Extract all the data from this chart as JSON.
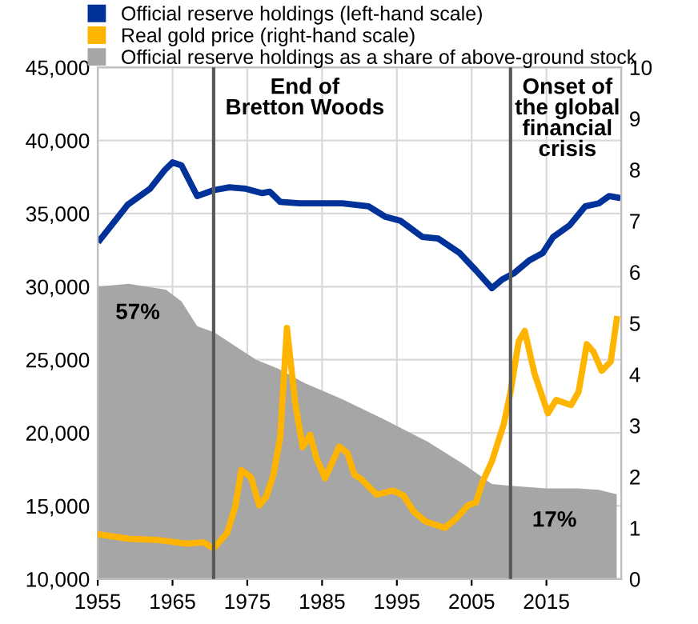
{
  "chart_data": {
    "type": "line",
    "legend": "top left",
    "grid": true,
    "xlim": [
      1955,
      2025
    ],
    "xticks": [
      1955,
      1965,
      1975,
      1985,
      1995,
      2005,
      2015
    ],
    "ylim": [
      10000,
      45000
    ],
    "yticks": [
      {
        "value": 10000,
        "label": "10,000"
      },
      {
        "value": 15000,
        "label": "15,000"
      },
      {
        "value": 20000,
        "label": "20,000"
      },
      {
        "value": 25000,
        "label": "25,000"
      },
      {
        "value": 30000,
        "label": "30,000"
      },
      {
        "value": 35000,
        "label": "35,000"
      },
      {
        "value": 40000,
        "label": "40,000"
      },
      {
        "value": 45000,
        "label": "45,000"
      }
    ],
    "y2lim": [
      0,
      10
    ],
    "y2ticks": [
      0,
      1,
      2,
      3,
      4,
      5,
      6,
      7,
      8,
      9,
      10
    ],
    "series": [
      {
        "name": "Official reserve holdings as a share of above-ground stock",
        "type": "area",
        "axis": "y",
        "color": "#a6a6a6",
        "x": [
          1955,
          1959.1,
          1964.1,
          1966.2,
          1968.3,
          1970.5,
          1976.2,
          1979.1,
          1982.7,
          1987.7,
          1993.4,
          1999.1,
          2004.1,
          2007.7,
          2009.9,
          2014.9,
          2019.1,
          2022,
          2024.4
        ],
        "values": [
          30000,
          30200,
          29800,
          29000,
          27300,
          26900,
          25000,
          24400,
          23400,
          22300,
          20900,
          19400,
          17800,
          16500,
          16400,
          16200,
          16200,
          16100,
          15800
        ]
      },
      {
        "name": "Official reserve holdings (left-hand scale)",
        "axis": "y",
        "color": "#003299",
        "x": [
          1955.3,
          1959,
          1962,
          1964,
          1965,
          1966.2,
          1968.3,
          1970.5,
          1972.6,
          1974.8,
          1977,
          1978,
          1979.4,
          1982,
          1987.7,
          1991.2,
          1993.4,
          1995.5,
          1998.4,
          2000.5,
          2003.4,
          2005.6,
          2007.7,
          2009.1,
          2010.6,
          2012.7,
          2014.5,
          2015.9,
          2018.1,
          2020.2,
          2022,
          2023.4,
          2024.5
        ],
        "values": [
          33200,
          35600,
          36700,
          38000,
          38500,
          38300,
          36200,
          36600,
          36800,
          36700,
          36400,
          36500,
          35800,
          35700,
          35700,
          35500,
          34800,
          34500,
          33400,
          33300,
          32300,
          31100,
          29900,
          30500,
          30900,
          31800,
          32300,
          33400,
          34200,
          35500,
          35700,
          36200,
          36100
        ]
      },
      {
        "name": "Real gold price (right-hand scale)",
        "type": "line",
        "axis": "y2",
        "color": "#ffb400",
        "x": [
          1955.3,
          1959.1,
          1963.3,
          1966.9,
          1969.1,
          1970.5,
          1972.3,
          1973.4,
          1974.2,
          1975.5,
          1976.6,
          1977.5,
          1978.5,
          1979.4,
          1980.3,
          1981.4,
          1982.4,
          1983.4,
          1984.2,
          1985.4,
          1987.3,
          1988.4,
          1989.3,
          1990.2,
          1992.3,
          1994.5,
          1995.9,
          1997.3,
          1998.8,
          2001.4,
          2003.0,
          2004.5,
          2005.6,
          2006.4,
          2007.7,
          2009.3,
          2010.2,
          2011.3,
          2012.1,
          2013.4,
          2015.2,
          2016.3,
          2018.3,
          2019.3,
          2020.4,
          2021.3,
          2022.4,
          2023.6,
          2024.4
        ],
        "values": [
          0.87,
          0.79,
          0.76,
          0.69,
          0.72,
          0.6,
          0.9,
          1.42,
          2.13,
          1.99,
          1.44,
          1.6,
          2.04,
          2.77,
          4.91,
          3.45,
          2.58,
          2.82,
          2.38,
          1.97,
          2.59,
          2.46,
          2.04,
          1.96,
          1.65,
          1.73,
          1.63,
          1.31,
          1.13,
          1.0,
          1.19,
          1.44,
          1.5,
          1.88,
          2.3,
          3.03,
          3.66,
          4.65,
          4.85,
          4.02,
          3.24,
          3.5,
          3.4,
          3.66,
          4.59,
          4.44,
          4.07,
          4.25,
          5.08
        ]
      }
    ],
    "ref_lines": [
      {
        "axis": "x",
        "value": 1970.5,
        "label": "End of\nBretton Woods",
        "color": "#595959"
      },
      {
        "axis": "x",
        "value": 2010.2,
        "label": "Onset of\nthe global\nfinancial\ncrisis",
        "color": "#595959"
      }
    ],
    "annotations": [
      "57%",
      "17%"
    ]
  }
}
